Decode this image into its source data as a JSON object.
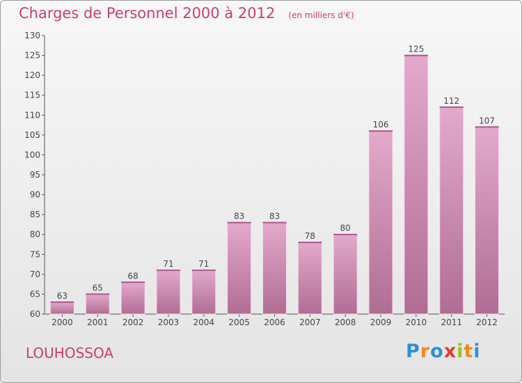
{
  "chart_data": {
    "type": "bar",
    "title": "Charges de Personnel 2000 à 2012",
    "subtitle": "(en milliers d'€)",
    "categories": [
      "2000",
      "2001",
      "2002",
      "2003",
      "2004",
      "2005",
      "2006",
      "2007",
      "2008",
      "2009",
      "2010",
      "2011",
      "2012"
    ],
    "values": [
      63,
      65,
      68,
      71,
      71,
      83,
      83,
      78,
      80,
      106,
      125,
      112,
      107
    ],
    "ylim": [
      60,
      130
    ],
    "yticks": [
      60,
      65,
      70,
      75,
      80,
      85,
      90,
      95,
      100,
      105,
      110,
      115,
      120,
      125,
      130
    ],
    "grid": false,
    "bar_color": "#c97aa5",
    "text_color": "#c8406b"
  },
  "footer": {
    "town": "LOUHOSSOA",
    "logo_letters": [
      {
        "ch": "P",
        "color": "#2f8fd8"
      },
      {
        "ch": "r",
        "color": "#f08a1c"
      },
      {
        "ch": "o",
        "color": "#2f8fd8"
      },
      {
        "ch": "x",
        "color": "#e23b2e"
      },
      {
        "ch": "i",
        "color": "#9ac31c"
      },
      {
        "ch": "t",
        "color": "#f08a1c"
      },
      {
        "ch": "i",
        "color": "#2f8fd8"
      }
    ]
  }
}
